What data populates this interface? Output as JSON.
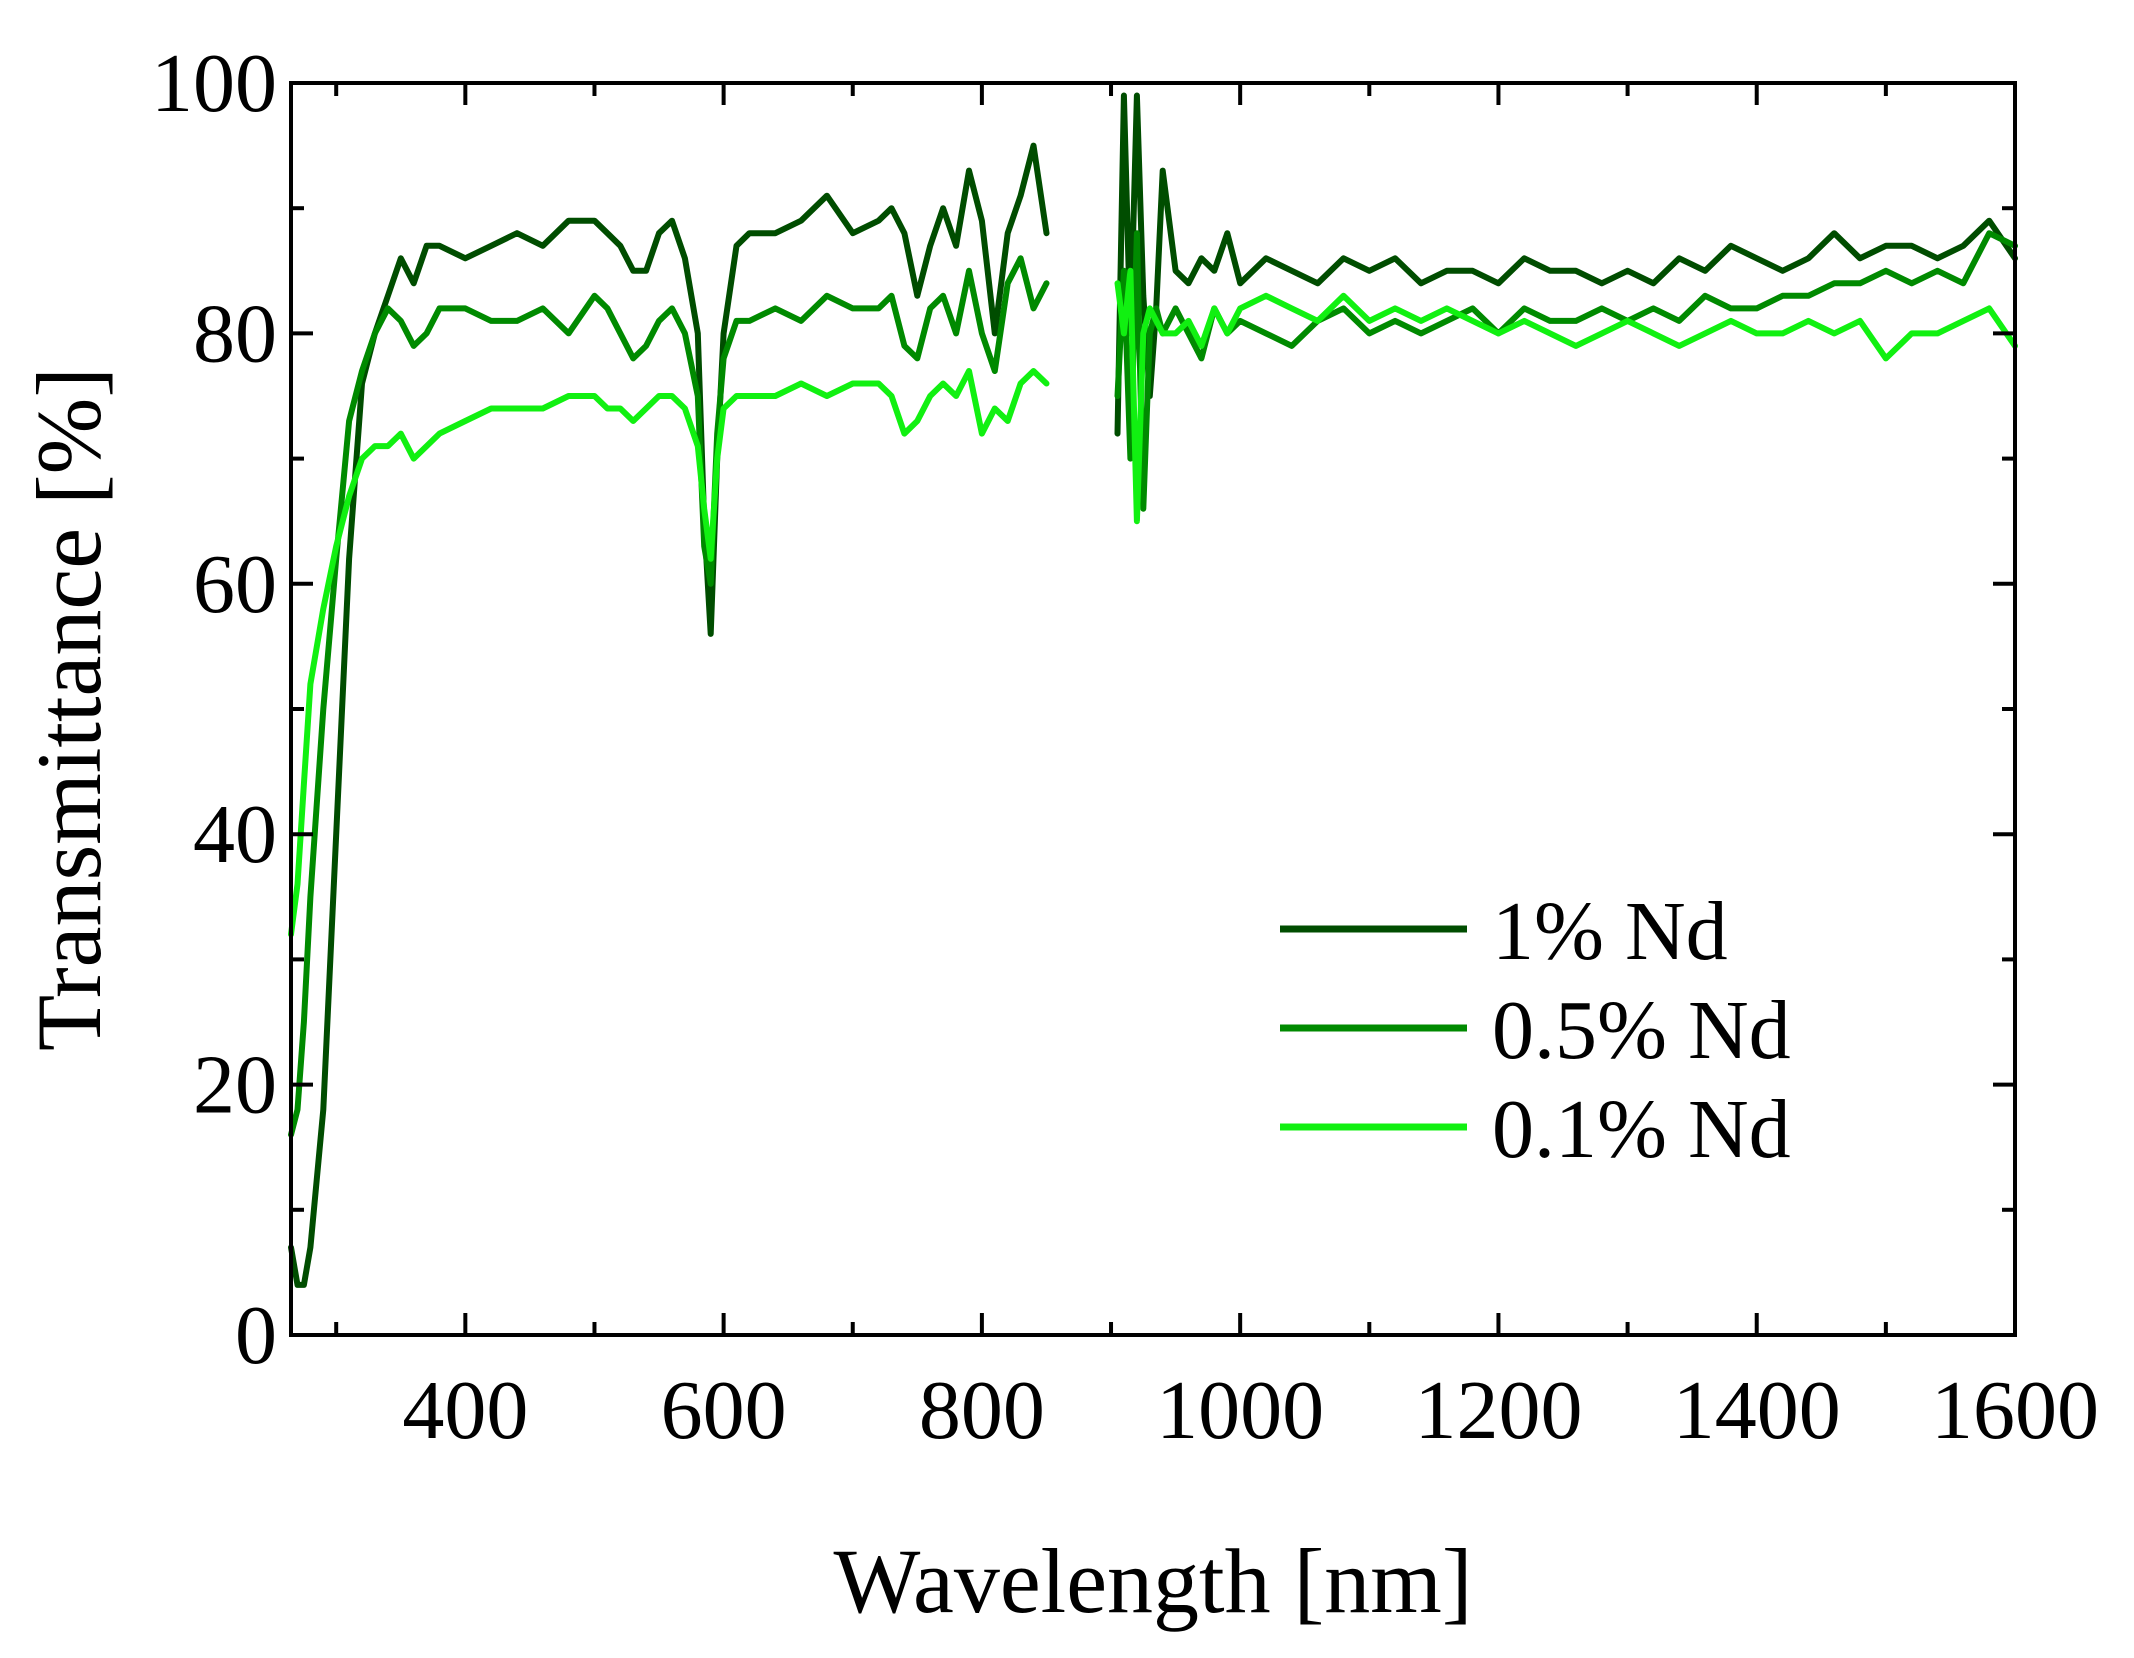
{
  "chart_data": {
    "type": "line",
    "title": "",
    "xlabel": "Wavelength [nm]",
    "ylabel": "Transmittance [%]",
    "xlim": [
      265,
      1600
    ],
    "ylim": [
      0,
      100
    ],
    "x_ticks": [
      "400",
      "600",
      "800",
      "1000",
      "1200",
      "1400",
      "1600"
    ],
    "y_ticks": [
      "0",
      "20",
      "40",
      "60",
      "80",
      "100"
    ],
    "grid": false,
    "legend_position": "bottom-right",
    "series": [
      {
        "name": "1% Nd",
        "color": "#004d00",
        "points": [
          [
            265,
            7
          ],
          [
            270,
            4
          ],
          [
            275,
            4
          ],
          [
            280,
            7
          ],
          [
            290,
            18
          ],
          [
            300,
            40
          ],
          [
            310,
            62
          ],
          [
            320,
            76
          ],
          [
            330,
            80
          ],
          [
            340,
            83
          ],
          [
            350,
            86
          ],
          [
            360,
            84
          ],
          [
            370,
            87
          ],
          [
            380,
            87
          ],
          [
            400,
            86
          ],
          [
            420,
            87
          ],
          [
            440,
            88
          ],
          [
            460,
            87
          ],
          [
            480,
            89
          ],
          [
            500,
            89
          ],
          [
            510,
            88
          ],
          [
            520,
            87
          ],
          [
            530,
            85
          ],
          [
            540,
            85
          ],
          [
            550,
            88
          ],
          [
            560,
            89
          ],
          [
            570,
            86
          ],
          [
            580,
            80
          ],
          [
            585,
            65
          ],
          [
            590,
            56
          ],
          [
            595,
            70
          ],
          [
            600,
            80
          ],
          [
            610,
            87
          ],
          [
            620,
            88
          ],
          [
            640,
            88
          ],
          [
            660,
            89
          ],
          [
            680,
            91
          ],
          [
            700,
            88
          ],
          [
            720,
            89
          ],
          [
            730,
            90
          ],
          [
            740,
            88
          ],
          [
            750,
            83
          ],
          [
            760,
            87
          ],
          [
            770,
            90
          ],
          [
            780,
            87
          ],
          [
            790,
            93
          ],
          [
            800,
            89
          ],
          [
            810,
            80
          ],
          [
            820,
            88
          ],
          [
            830,
            91
          ],
          [
            840,
            95
          ],
          [
            850,
            88
          ],
          [
            null,
            null
          ],
          [
            905,
            72
          ],
          [
            910,
            99
          ],
          [
            915,
            80
          ],
          [
            920,
            99
          ],
          [
            925,
            83
          ],
          [
            930,
            75
          ],
          [
            935,
            82
          ],
          [
            940,
            93
          ],
          [
            950,
            85
          ],
          [
            960,
            84
          ],
          [
            970,
            86
          ],
          [
            980,
            85
          ],
          [
            990,
            88
          ],
          [
            1000,
            84
          ],
          [
            1020,
            86
          ],
          [
            1040,
            85
          ],
          [
            1060,
            84
          ],
          [
            1080,
            86
          ],
          [
            1100,
            85
          ],
          [
            1120,
            86
          ],
          [
            1140,
            84
          ],
          [
            1160,
            85
          ],
          [
            1180,
            85
          ],
          [
            1200,
            84
          ],
          [
            1220,
            86
          ],
          [
            1240,
            85
          ],
          [
            1260,
            85
          ],
          [
            1280,
            84
          ],
          [
            1300,
            85
          ],
          [
            1320,
            84
          ],
          [
            1340,
            86
          ],
          [
            1360,
            85
          ],
          [
            1380,
            87
          ],
          [
            1400,
            86
          ],
          [
            1420,
            85
          ],
          [
            1440,
            86
          ],
          [
            1460,
            88
          ],
          [
            1480,
            86
          ],
          [
            1500,
            87
          ],
          [
            1520,
            87
          ],
          [
            1540,
            86
          ],
          [
            1560,
            87
          ],
          [
            1580,
            89
          ],
          [
            1600,
            86
          ]
        ]
      },
      {
        "name": "0.5% Nd",
        "color": "#008a00",
        "points": [
          [
            265,
            16
          ],
          [
            270,
            18
          ],
          [
            275,
            25
          ],
          [
            280,
            35
          ],
          [
            290,
            50
          ],
          [
            300,
            62
          ],
          [
            310,
            73
          ],
          [
            320,
            77
          ],
          [
            330,
            80
          ],
          [
            340,
            82
          ],
          [
            350,
            81
          ],
          [
            360,
            79
          ],
          [
            370,
            80
          ],
          [
            380,
            82
          ],
          [
            400,
            82
          ],
          [
            420,
            81
          ],
          [
            440,
            81
          ],
          [
            460,
            82
          ],
          [
            480,
            80
          ],
          [
            500,
            83
          ],
          [
            510,
            82
          ],
          [
            520,
            80
          ],
          [
            530,
            78
          ],
          [
            540,
            79
          ],
          [
            550,
            81
          ],
          [
            560,
            82
          ],
          [
            570,
            80
          ],
          [
            580,
            75
          ],
          [
            585,
            63
          ],
          [
            590,
            60
          ],
          [
            595,
            72
          ],
          [
            600,
            78
          ],
          [
            610,
            81
          ],
          [
            620,
            81
          ],
          [
            640,
            82
          ],
          [
            660,
            81
          ],
          [
            680,
            83
          ],
          [
            700,
            82
          ],
          [
            720,
            82
          ],
          [
            730,
            83
          ],
          [
            740,
            79
          ],
          [
            750,
            78
          ],
          [
            760,
            82
          ],
          [
            770,
            83
          ],
          [
            780,
            80
          ],
          [
            790,
            85
          ],
          [
            800,
            80
          ],
          [
            810,
            77
          ],
          [
            820,
            84
          ],
          [
            830,
            86
          ],
          [
            840,
            82
          ],
          [
            850,
            84
          ],
          [
            null,
            null
          ],
          [
            905,
            75
          ],
          [
            910,
            85
          ],
          [
            915,
            70
          ],
          [
            920,
            88
          ],
          [
            925,
            66
          ],
          [
            930,
            80
          ],
          [
            935,
            82
          ],
          [
            940,
            80
          ],
          [
            950,
            82
          ],
          [
            960,
            80
          ],
          [
            970,
            78
          ],
          [
            980,
            82
          ],
          [
            990,
            80
          ],
          [
            1000,
            81
          ],
          [
            1020,
            80
          ],
          [
            1040,
            79
          ],
          [
            1060,
            81
          ],
          [
            1080,
            82
          ],
          [
            1100,
            80
          ],
          [
            1120,
            81
          ],
          [
            1140,
            80
          ],
          [
            1160,
            81
          ],
          [
            1180,
            82
          ],
          [
            1200,
            80
          ],
          [
            1220,
            82
          ],
          [
            1240,
            81
          ],
          [
            1260,
            81
          ],
          [
            1280,
            82
          ],
          [
            1300,
            81
          ],
          [
            1320,
            82
          ],
          [
            1340,
            81
          ],
          [
            1360,
            83
          ],
          [
            1380,
            82
          ],
          [
            1400,
            82
          ],
          [
            1420,
            83
          ],
          [
            1440,
            83
          ],
          [
            1460,
            84
          ],
          [
            1480,
            84
          ],
          [
            1500,
            85
          ],
          [
            1520,
            84
          ],
          [
            1540,
            85
          ],
          [
            1560,
            84
          ],
          [
            1580,
            88
          ],
          [
            1600,
            87
          ]
        ]
      },
      {
        "name": "0.1% Nd",
        "color": "#11f011",
        "points": [
          [
            265,
            32
          ],
          [
            270,
            36
          ],
          [
            275,
            44
          ],
          [
            280,
            52
          ],
          [
            290,
            58
          ],
          [
            300,
            63
          ],
          [
            310,
            67
          ],
          [
            320,
            70
          ],
          [
            330,
            71
          ],
          [
            340,
            71
          ],
          [
            350,
            72
          ],
          [
            360,
            70
          ],
          [
            370,
            71
          ],
          [
            380,
            72
          ],
          [
            400,
            73
          ],
          [
            420,
            74
          ],
          [
            440,
            74
          ],
          [
            460,
            74
          ],
          [
            480,
            75
          ],
          [
            500,
            75
          ],
          [
            510,
            74
          ],
          [
            520,
            74
          ],
          [
            530,
            73
          ],
          [
            540,
            74
          ],
          [
            550,
            75
          ],
          [
            560,
            75
          ],
          [
            570,
            74
          ],
          [
            580,
            71
          ],
          [
            585,
            66
          ],
          [
            590,
            62
          ],
          [
            595,
            70
          ],
          [
            600,
            74
          ],
          [
            610,
            75
          ],
          [
            620,
            75
          ],
          [
            640,
            75
          ],
          [
            660,
            76
          ],
          [
            680,
            75
          ],
          [
            700,
            76
          ],
          [
            720,
            76
          ],
          [
            730,
            75
          ],
          [
            740,
            72
          ],
          [
            750,
            73
          ],
          [
            760,
            75
          ],
          [
            770,
            76
          ],
          [
            780,
            75
          ],
          [
            790,
            77
          ],
          [
            800,
            72
          ],
          [
            810,
            74
          ],
          [
            820,
            73
          ],
          [
            830,
            76
          ],
          [
            840,
            77
          ],
          [
            850,
            76
          ],
          [
            null,
            null
          ],
          [
            905,
            84
          ],
          [
            910,
            80
          ],
          [
            915,
            85
          ],
          [
            920,
            65
          ],
          [
            925,
            80
          ],
          [
            930,
            82
          ],
          [
            940,
            80
          ],
          [
            950,
            80
          ],
          [
            960,
            81
          ],
          [
            970,
            79
          ],
          [
            980,
            82
          ],
          [
            990,
            80
          ],
          [
            1000,
            82
          ],
          [
            1020,
            83
          ],
          [
            1040,
            82
          ],
          [
            1060,
            81
          ],
          [
            1080,
            83
          ],
          [
            1100,
            81
          ],
          [
            1120,
            82
          ],
          [
            1140,
            81
          ],
          [
            1160,
            82
          ],
          [
            1180,
            81
          ],
          [
            1200,
            80
          ],
          [
            1220,
            81
          ],
          [
            1240,
            80
          ],
          [
            1260,
            79
          ],
          [
            1280,
            80
          ],
          [
            1300,
            81
          ],
          [
            1320,
            80
          ],
          [
            1340,
            79
          ],
          [
            1360,
            80
          ],
          [
            1380,
            81
          ],
          [
            1400,
            80
          ],
          [
            1420,
            80
          ],
          [
            1440,
            81
          ],
          [
            1460,
            80
          ],
          [
            1480,
            81
          ],
          [
            1500,
            78
          ],
          [
            1520,
            80
          ],
          [
            1540,
            80
          ],
          [
            1560,
            81
          ],
          [
            1580,
            82
          ],
          [
            1600,
            79
          ]
        ]
      }
    ]
  }
}
